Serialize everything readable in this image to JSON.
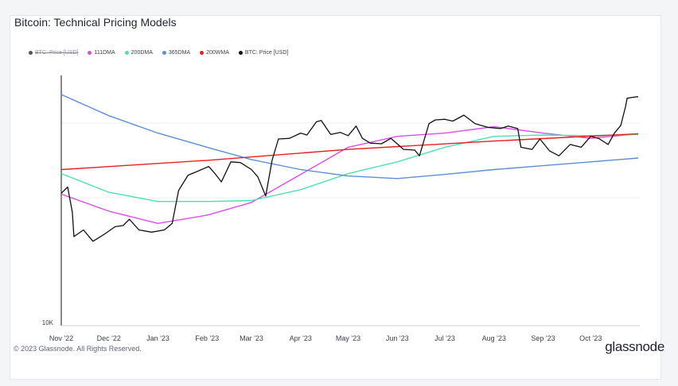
{
  "title": "Bitcoin: Technical Pricing Models",
  "footer": "© 2023 Glassnode. All Rights Reserved.",
  "logo_text": "glassnode",
  "legend": [
    {
      "label": "BTC: Price [USD]",
      "color": "#555555",
      "disabled": true
    },
    {
      "label": "111DMA",
      "color": "#d94fe6",
      "disabled": false
    },
    {
      "label": "200DMA",
      "color": "#4fdfb0",
      "disabled": false
    },
    {
      "label": "365DMA",
      "color": "#5b8fd8",
      "disabled": false
    },
    {
      "label": "200WMA",
      "color": "#e8201f",
      "disabled": false
    },
    {
      "label": "BTC: Price [USD]",
      "color": "#111111",
      "disabled": false
    }
  ],
  "chart_data": {
    "type": "line",
    "x_ticks": [
      "Nov '22",
      "Dec '22",
      "Jan '23",
      "Feb '23",
      "Mar '23",
      "Apr '23",
      "May '23",
      "Jun '23",
      "Jul '23",
      "Aug '23",
      "Sep '23",
      "Oct '23"
    ],
    "y_tick_labels": [
      "10K"
    ],
    "y_scale": "log",
    "ylim": [
      10000,
      40000
    ],
    "grid": true,
    "legend_position": "top-left",
    "series": [
      {
        "name": "BTC: Price [USD]",
        "color": "#111111",
        "points": [
          [
            "2022-11-01",
            20500
          ],
          [
            "2022-11-05",
            21200
          ],
          [
            "2022-11-08",
            18500
          ],
          [
            "2022-11-09",
            16200
          ],
          [
            "2022-11-15",
            16800
          ],
          [
            "2022-11-21",
            15800
          ],
          [
            "2022-11-28",
            16400
          ],
          [
            "2022-12-05",
            17100
          ],
          [
            "2022-12-10",
            17200
          ],
          [
            "2022-12-14",
            17800
          ],
          [
            "2022-12-20",
            16800
          ],
          [
            "2022-12-28",
            16600
          ],
          [
            "2023-01-05",
            16800
          ],
          [
            "2023-01-10",
            17400
          ],
          [
            "2023-01-14",
            20800
          ],
          [
            "2023-01-20",
            22600
          ],
          [
            "2023-01-25",
            23000
          ],
          [
            "2023-02-02",
            23700
          ],
          [
            "2023-02-06",
            22800
          ],
          [
            "2023-02-10",
            21800
          ],
          [
            "2023-02-16",
            24300
          ],
          [
            "2023-02-22",
            24200
          ],
          [
            "2023-03-01",
            23300
          ],
          [
            "2023-03-05",
            22400
          ],
          [
            "2023-03-10",
            20200
          ],
          [
            "2023-03-14",
            24500
          ],
          [
            "2023-03-18",
            27500
          ],
          [
            "2023-03-25",
            27600
          ],
          [
            "2023-04-01",
            28400
          ],
          [
            "2023-04-05",
            28100
          ],
          [
            "2023-04-11",
            30200
          ],
          [
            "2023-04-14",
            30400
          ],
          [
            "2023-04-20",
            28200
          ],
          [
            "2023-04-26",
            28500
          ],
          [
            "2023-05-01",
            28000
          ],
          [
            "2023-05-06",
            29500
          ],
          [
            "2023-05-10",
            27600
          ],
          [
            "2023-05-15",
            26900
          ],
          [
            "2023-05-22",
            26800
          ],
          [
            "2023-05-28",
            27600
          ],
          [
            "2023-06-05",
            26000
          ],
          [
            "2023-06-12",
            25900
          ],
          [
            "2023-06-15",
            25100
          ],
          [
            "2023-06-21",
            29900
          ],
          [
            "2023-06-25",
            30500
          ],
          [
            "2023-07-01",
            30600
          ],
          [
            "2023-07-06",
            30300
          ],
          [
            "2023-07-13",
            31300
          ],
          [
            "2023-07-20",
            29900
          ],
          [
            "2023-07-28",
            29300
          ],
          [
            "2023-08-05",
            29100
          ],
          [
            "2023-08-10",
            29500
          ],
          [
            "2023-08-16",
            29100
          ],
          [
            "2023-08-18",
            26300
          ],
          [
            "2023-08-25",
            26000
          ],
          [
            "2023-08-30",
            27500
          ],
          [
            "2023-09-05",
            25800
          ],
          [
            "2023-09-11",
            25100
          ],
          [
            "2023-09-18",
            26700
          ],
          [
            "2023-09-25",
            26300
          ],
          [
            "2023-10-01",
            27900
          ],
          [
            "2023-10-06",
            27600
          ],
          [
            "2023-10-12",
            26700
          ],
          [
            "2023-10-16",
            28400
          ],
          [
            "2023-10-20",
            29600
          ],
          [
            "2023-10-23",
            32800
          ],
          [
            "2023-10-24",
            34300
          ],
          [
            "2023-10-28",
            34500
          ],
          [
            "2023-10-31",
            34600
          ]
        ]
      },
      {
        "name": "111DMA",
        "color": "#d94fe6",
        "points": [
          [
            "2022-11-01",
            20400
          ],
          [
            "2022-12-01",
            18600
          ],
          [
            "2023-01-01",
            17400
          ],
          [
            "2023-02-01",
            18200
          ],
          [
            "2023-03-01",
            19500
          ],
          [
            "2023-04-01",
            22700
          ],
          [
            "2023-05-01",
            26300
          ],
          [
            "2023-06-01",
            27900
          ],
          [
            "2023-07-01",
            28400
          ],
          [
            "2023-08-01",
            29400
          ],
          [
            "2023-09-01",
            28400
          ],
          [
            "2023-10-01",
            27600
          ],
          [
            "2023-10-31",
            28300
          ]
        ]
      },
      {
        "name": "200DMA",
        "color": "#4fdfb0",
        "points": [
          [
            "2022-11-01",
            22800
          ],
          [
            "2022-12-01",
            20600
          ],
          [
            "2023-01-01",
            19600
          ],
          [
            "2023-02-01",
            19600
          ],
          [
            "2023-03-01",
            19700
          ],
          [
            "2023-04-01",
            20900
          ],
          [
            "2023-05-01",
            22800
          ],
          [
            "2023-06-01",
            24300
          ],
          [
            "2023-07-01",
            26300
          ],
          [
            "2023-08-01",
            27900
          ],
          [
            "2023-09-01",
            28100
          ],
          [
            "2023-10-01",
            28000
          ],
          [
            "2023-10-31",
            28200
          ]
        ]
      },
      {
        "name": "365DMA",
        "color": "#5b8fd8",
        "points": [
          [
            "2022-11-01",
            35000
          ],
          [
            "2022-12-01",
            31200
          ],
          [
            "2023-01-01",
            28400
          ],
          [
            "2023-02-01",
            26300
          ],
          [
            "2023-03-01",
            24600
          ],
          [
            "2023-04-01",
            23300
          ],
          [
            "2023-05-01",
            22500
          ],
          [
            "2023-06-01",
            22200
          ],
          [
            "2023-07-01",
            22700
          ],
          [
            "2023-08-01",
            23300
          ],
          [
            "2023-09-01",
            23800
          ],
          [
            "2023-10-01",
            24300
          ],
          [
            "2023-10-31",
            24800
          ]
        ]
      },
      {
        "name": "200WMA",
        "color": "#e8201f",
        "points": [
          [
            "2022-11-01",
            23300
          ],
          [
            "2023-02-01",
            24500
          ],
          [
            "2023-05-01",
            26000
          ],
          [
            "2023-08-01",
            27200
          ],
          [
            "2023-10-31",
            28300
          ]
        ]
      }
    ]
  }
}
